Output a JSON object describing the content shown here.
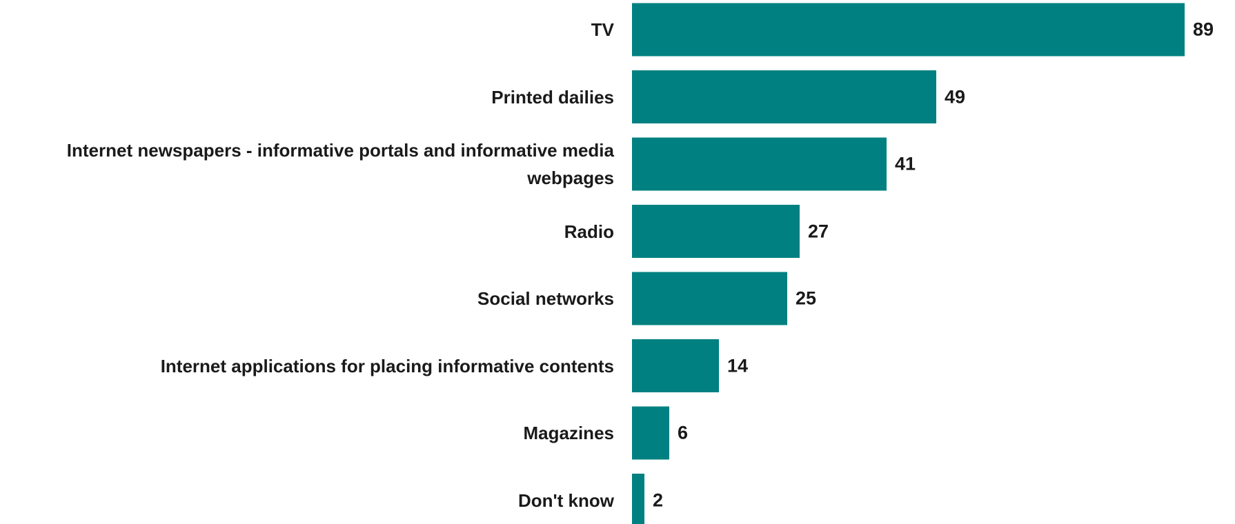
{
  "chart_data": {
    "type": "bar",
    "orientation": "horizontal",
    "categories": [
      "TV",
      "Printed dailies",
      "Internet newspapers - informative portals and informative media webpages",
      "Radio",
      "Social networks",
      "Internet applications for placing informative contents",
      "Magazines",
      "Don't know"
    ],
    "values": [
      89,
      49,
      41,
      27,
      25,
      14,
      6,
      2
    ],
    "value_labels": [
      "89",
      "49",
      "41",
      "27",
      "25",
      "14",
      "6",
      "2"
    ],
    "xlim": [
      0,
      100
    ],
    "grid": false,
    "legend": "none",
    "bar_color": "#008080",
    "title": "",
    "xlabel": "",
    "ylabel": ""
  }
}
